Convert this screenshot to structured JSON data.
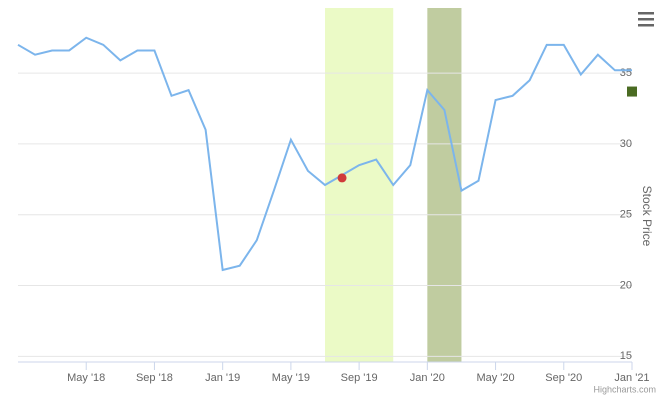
{
  "chart_data": {
    "type": "line",
    "y_axis_label": "Stock Price",
    "credits": "Highcharts.com",
    "x": [
      "2018-01",
      "2018-02",
      "2018-03",
      "2018-04",
      "2018-05",
      "2018-06",
      "2018-07",
      "2018-08",
      "2018-09",
      "2018-10",
      "2018-11",
      "2018-12",
      "2019-01",
      "2019-02",
      "2019-03",
      "2019-04",
      "2019-05",
      "2019-06",
      "2019-07",
      "2019-08",
      "2019-09",
      "2019-10",
      "2019-11",
      "2019-12",
      "2020-01",
      "2020-02",
      "2020-03",
      "2020-04",
      "2020-05",
      "2020-06",
      "2020-07",
      "2020-08",
      "2020-09",
      "2020-10",
      "2020-11",
      "2020-12",
      "2021-01"
    ],
    "series": [
      {
        "color": "#7cb5ec",
        "values": [
          37,
          36.3,
          36.6,
          36.6,
          37.5,
          37,
          35.9,
          36.6,
          36.6,
          33.4,
          33.8,
          31,
          21.1,
          21.4,
          23.2,
          26.7,
          30.3,
          28.1,
          27.1,
          27.8,
          28.5,
          28.9,
          27.1,
          28.5,
          33.8,
          32.4,
          26.7,
          27.4,
          33.1,
          33.4,
          34.5,
          37,
          37,
          34.9,
          36.3,
          35.2,
          35.2
        ]
      }
    ],
    "xlim": [
      "2018-01",
      "2021-01"
    ],
    "xticks": [
      {
        "value": "2018-05",
        "label": "May '18"
      },
      {
        "value": "2018-09",
        "label": "Sep '18"
      },
      {
        "value": "2019-01",
        "label": "Jan '19"
      },
      {
        "value": "2019-05",
        "label": "May '19"
      },
      {
        "value": "2019-09",
        "label": "Sep '19"
      },
      {
        "value": "2020-01",
        "label": "Jan '20"
      },
      {
        "value": "2020-05",
        "label": "May '20"
      },
      {
        "value": "2020-09",
        "label": "Sep '20"
      },
      {
        "value": "2021-01",
        "label": "Jan '21"
      }
    ],
    "ylim": [
      14.6,
      39.6
    ],
    "yticks": [
      15,
      20,
      25,
      30,
      35
    ],
    "grid": true,
    "bands": [
      {
        "from": "2019-07",
        "to": "2019-11",
        "color": "#ebfac6"
      },
      {
        "from": "2020-01",
        "to": "2020-03",
        "color": "#c0cca0"
      }
    ],
    "markers": [
      {
        "x": "2019-08",
        "value": 27.6,
        "color": "#d03a3a",
        "shape": "circle"
      },
      {
        "x": "2021-01",
        "value": 33.7,
        "color": "#4a6b22",
        "shape": "square"
      }
    ]
  }
}
